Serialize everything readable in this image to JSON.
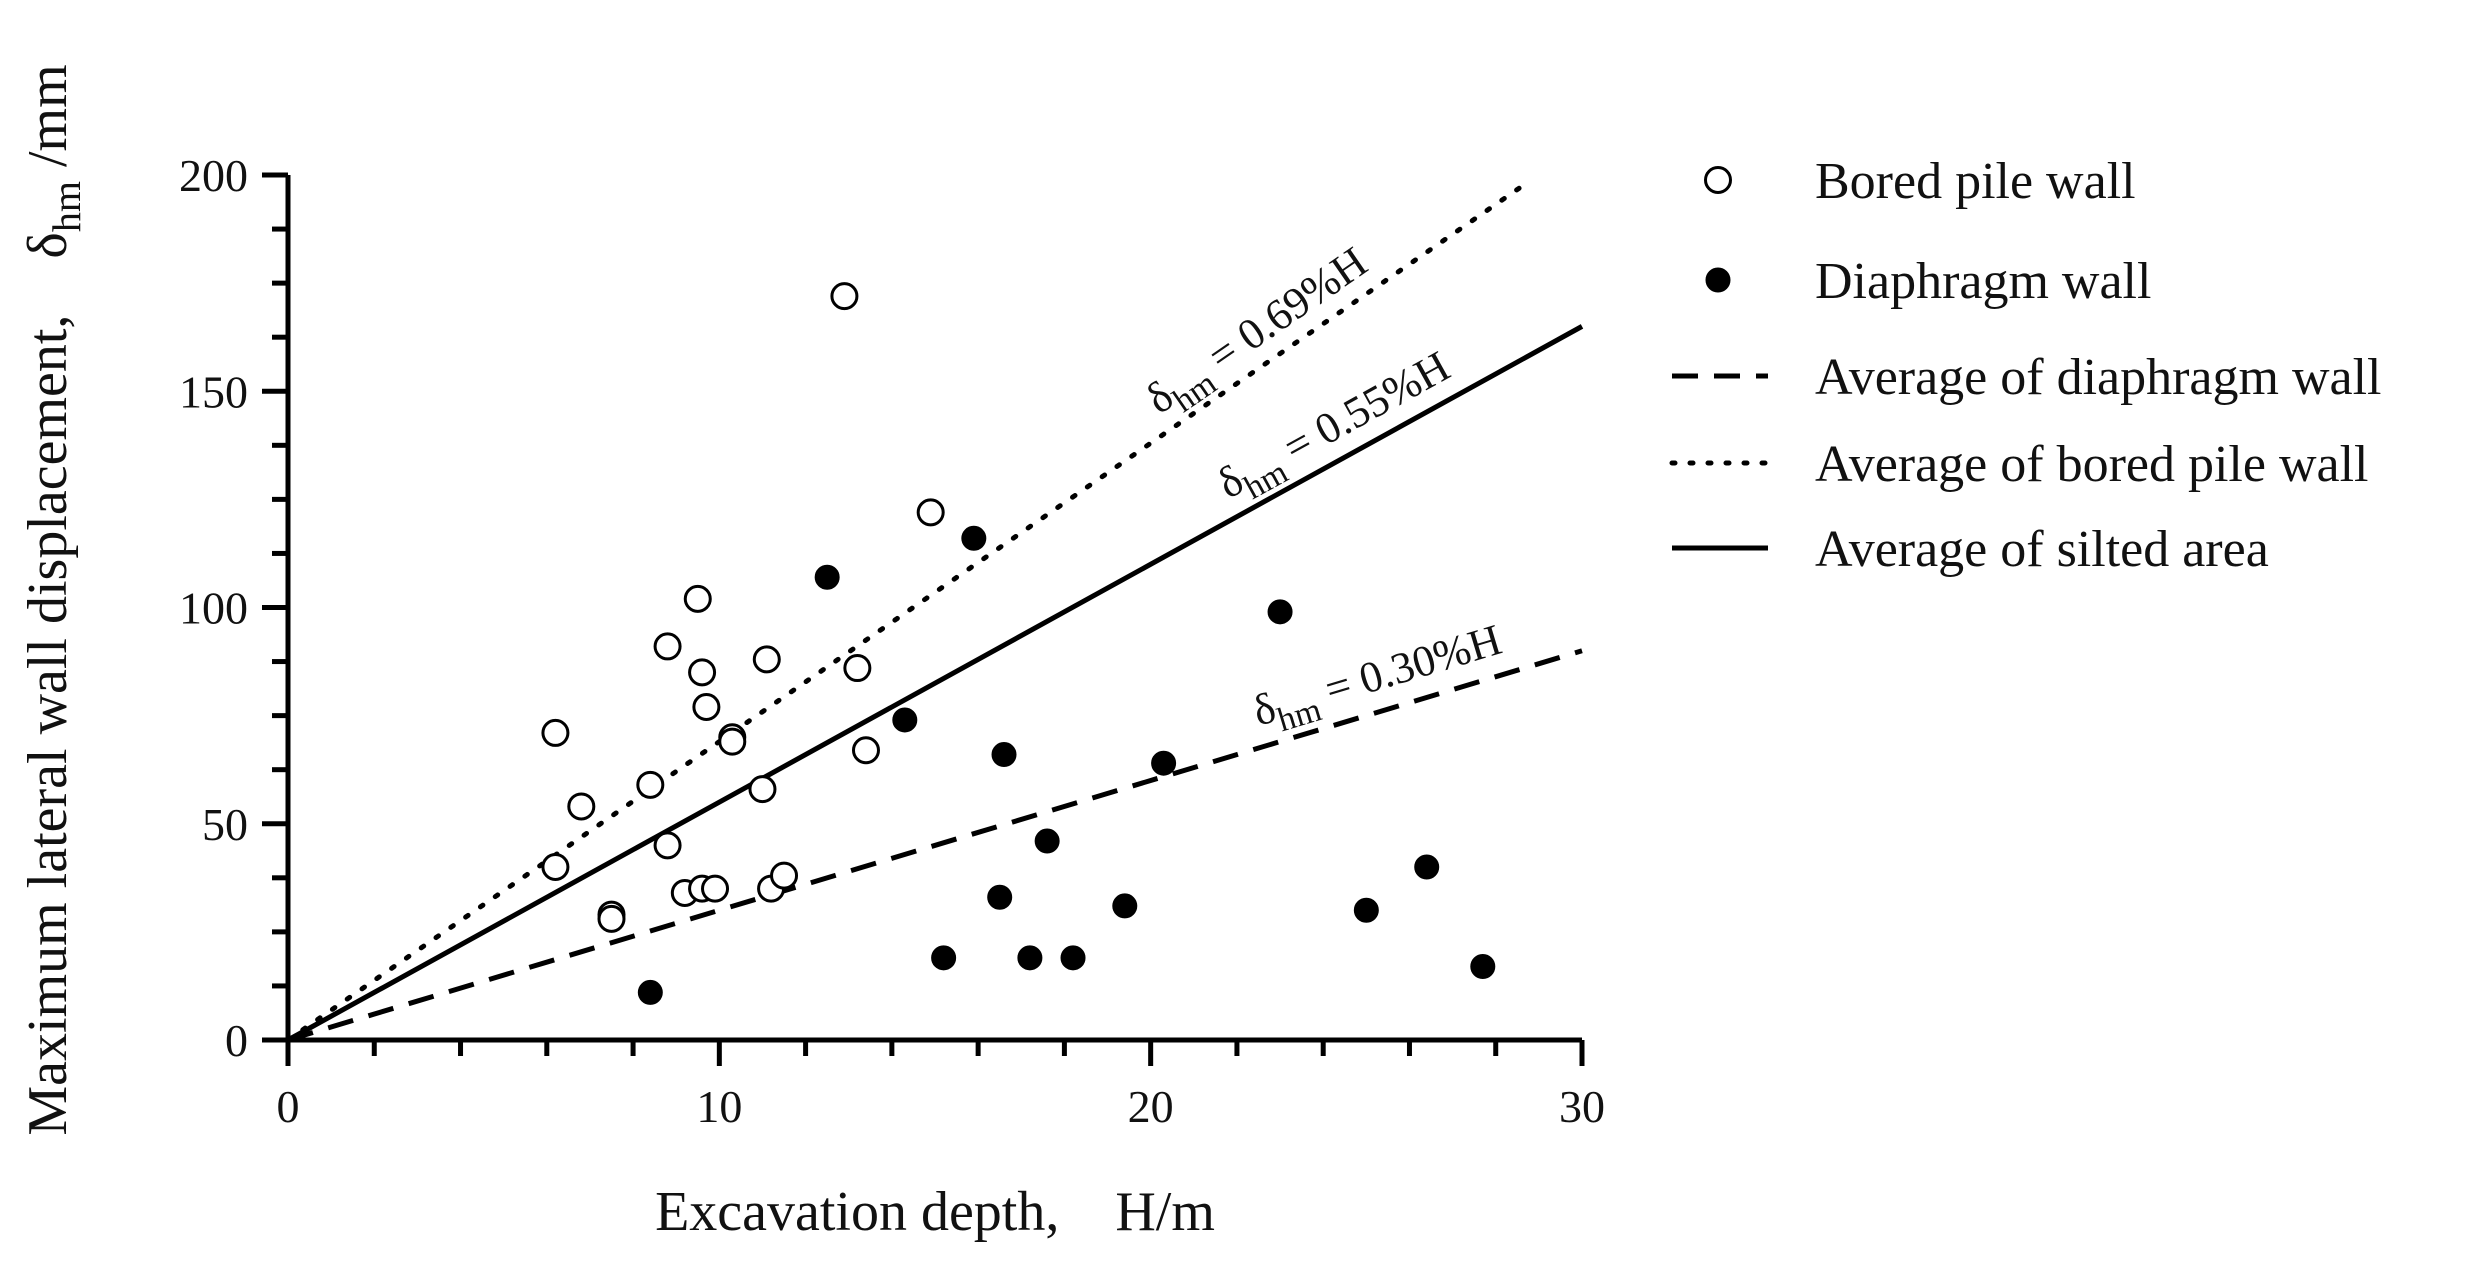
{
  "chart_data": {
    "type": "scatter",
    "title": "",
    "xlabel": "Excavation depth,　H/m",
    "ylabel": "Maximum lateral wall displacement,　δ",
    "ylabel_sub": "hm",
    "ylabel_unit": " /mm",
    "xlim": [
      0,
      30
    ],
    "ylim": [
      0,
      200
    ],
    "x_ticks": [
      0,
      10,
      20,
      30
    ],
    "y_ticks": [
      0,
      50,
      100,
      150,
      200
    ],
    "x_tick_labels": [
      "0",
      "10",
      "20",
      "30"
    ],
    "y_tick_labels": [
      "0",
      "50",
      "100",
      "150",
      "200"
    ],
    "series": [
      {
        "name": "Bored pile wall",
        "marker": "open-circle",
        "points": [
          [
            6.2,
            71
          ],
          [
            6.2,
            40
          ],
          [
            6.8,
            54
          ],
          [
            7.5,
            29
          ],
          [
            7.5,
            28
          ],
          [
            8.4,
            59
          ],
          [
            8.8,
            91
          ],
          [
            8.8,
            45
          ],
          [
            9.2,
            34
          ],
          [
            9.5,
            102
          ],
          [
            9.6,
            85
          ],
          [
            9.6,
            35
          ],
          [
            9.7,
            77
          ],
          [
            9.9,
            35
          ],
          [
            10.3,
            70
          ],
          [
            10.3,
            69
          ],
          [
            11.0,
            58
          ],
          [
            11.1,
            88
          ],
          [
            11.2,
            35
          ],
          [
            11.5,
            38
          ],
          [
            12.9,
            172
          ],
          [
            13.2,
            86
          ],
          [
            13.4,
            67
          ],
          [
            14.9,
            122
          ]
        ]
      },
      {
        "name": "Diaphragm wall",
        "marker": "filled-circle",
        "points": [
          [
            8.4,
            11
          ],
          [
            12.5,
            107
          ],
          [
            14.3,
            74
          ],
          [
            15.2,
            19
          ],
          [
            15.9,
            116
          ],
          [
            16.5,
            33
          ],
          [
            16.6,
            66
          ],
          [
            17.2,
            19
          ],
          [
            17.6,
            46
          ],
          [
            18.2,
            19
          ],
          [
            19.4,
            31
          ],
          [
            20.3,
            64
          ],
          [
            23.0,
            99
          ],
          [
            25.0,
            30
          ],
          [
            26.4,
            40
          ],
          [
            27.7,
            17
          ]
        ]
      }
    ],
    "fit_lines": [
      {
        "name": "Average of diaphragm wall",
        "style": "dashed",
        "slope": 3.0,
        "x_end": 30,
        "label_prefix": "δ",
        "label_sub": "hm",
        "label_suffix": " = 0.30%H",
        "label_x": 22.5
      },
      {
        "name": "Average of bored pile wall",
        "style": "dotted",
        "slope": 6.9,
        "x_end": 28.8,
        "label_prefix": "δ",
        "label_sub": "hm",
        "label_suffix": " = 0.69%H",
        "label_x": 20.2
      },
      {
        "name": "Average of silted area",
        "style": "solid",
        "slope": 5.5,
        "x_end": 30,
        "label_prefix": "δ",
        "label_sub": "hm",
        "label_suffix": " = 0.55%H",
        "label_x": 21.8
      }
    ],
    "legend": {
      "position": "right",
      "entries": [
        {
          "label": "Bored pile wall",
          "symbol": "open-circle"
        },
        {
          "label": "Diaphragm wall",
          "symbol": "filled-circle"
        },
        {
          "label": "Average of diaphragm wall",
          "symbol": "dashed"
        },
        {
          "label": "Average of bored pile wall",
          "symbol": "dotted"
        },
        {
          "label": "Average of silted area",
          "symbol": "solid"
        }
      ]
    },
    "grid": false
  }
}
